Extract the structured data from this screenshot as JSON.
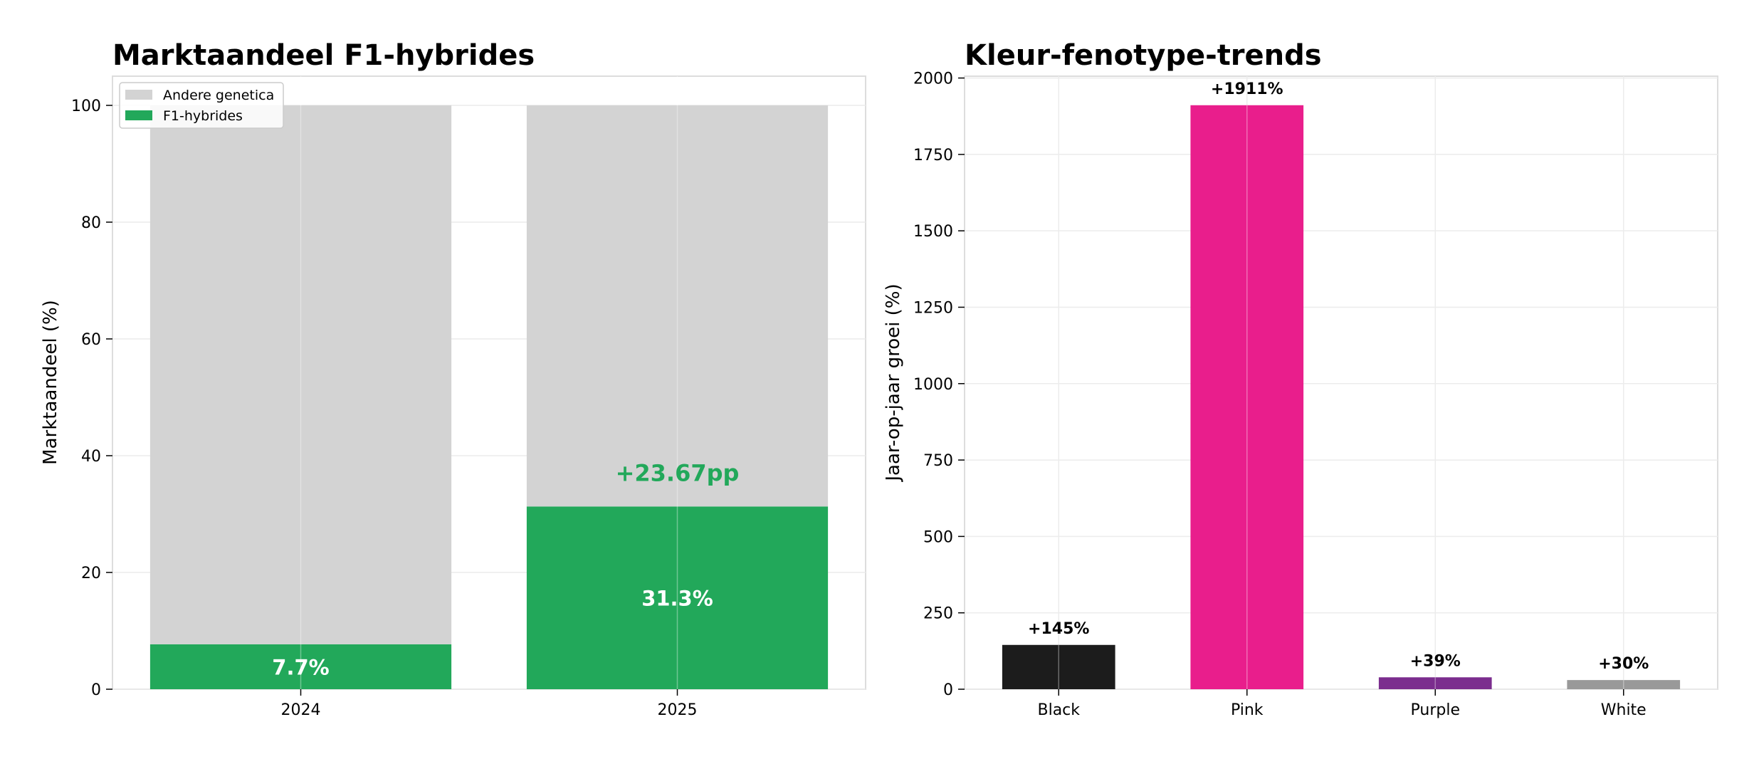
{
  "chart_data": [
    {
      "type": "bar",
      "stacked": true,
      "title": "Marktaandeel F1-hybrides",
      "xlabel": "",
      "ylabel": "Marktaandeel (%)",
      "categories": [
        "2024",
        "2025"
      ],
      "ylim": [
        0,
        105
      ],
      "yticks": [
        0,
        20,
        40,
        60,
        80,
        100
      ],
      "grid": true,
      "legend": "top-left",
      "series": [
        {
          "name": "F1-hybrides",
          "values": [
            7.7,
            31.3
          ],
          "color": "#22a85a"
        },
        {
          "name": "Andere genetica",
          "values": [
            92.3,
            68.7
          ],
          "color": "#d3d3d3"
        }
      ],
      "data_labels": [
        "7.7%",
        "31.3%"
      ],
      "annotation": {
        "text": "+23.67pp",
        "category": "2025",
        "y": 37,
        "color": "#22a85a"
      }
    },
    {
      "type": "bar",
      "title": "Kleur-fenotype-trends",
      "xlabel": "",
      "ylabel": "Jaar-op-jaar groei (%)",
      "categories": [
        "Black",
        "Pink",
        "Purple",
        "White"
      ],
      "values": [
        145,
        1911,
        39,
        30
      ],
      "colors": [
        "#1c1c1c",
        "#e91e8c",
        "#7b2d8e",
        "#999999"
      ],
      "data_labels": [
        "+145%",
        "+1911%",
        "+39%",
        "+30%"
      ],
      "ylim": [
        0,
        2006
      ],
      "yticks": [
        0,
        250,
        500,
        750,
        1000,
        1250,
        1500,
        1750,
        2000
      ],
      "grid": true
    }
  ]
}
